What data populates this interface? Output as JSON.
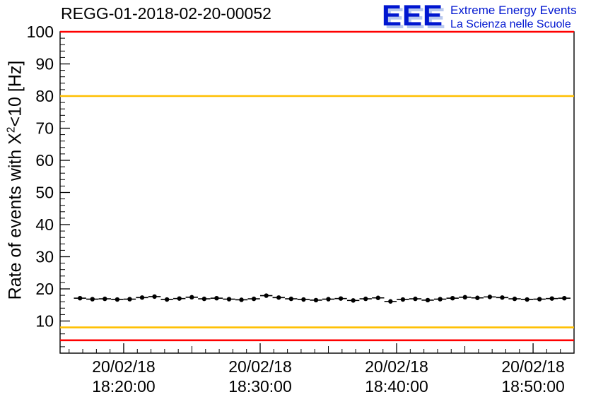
{
  "logo": {
    "text": "EEE",
    "line1": "Extreme Energy Events",
    "line2": "La Scienza nelle Scuole",
    "color": "#0016d0",
    "shadow_color": "#b9c9ee"
  },
  "chart_data": {
    "type": "scatter",
    "title": "REGG-01-2018-02-20-00052",
    "ylabel_parts": {
      "prefix": "Rate of events with X",
      "exp": "2",
      "suffix": "<10 [Hz]"
    },
    "ylim": [
      0,
      100
    ],
    "xlim": [
      15.34,
      53.0
    ],
    "yticks": [
      10,
      20,
      30,
      40,
      50,
      60,
      70,
      80,
      90,
      100
    ],
    "x_ticks": [
      {
        "t": 20,
        "date": "20/02/18",
        "time": "18:20:00"
      },
      {
        "t": 30,
        "date": "20/02/18",
        "time": "18:30:00"
      },
      {
        "t": 40,
        "date": "20/02/18",
        "time": "18:40:00"
      },
      {
        "t": 50,
        "date": "20/02/18",
        "time": "18:50:00"
      }
    ],
    "marker_color": "#000000",
    "y_err": 0.55,
    "x_err": 0.45,
    "x": [
      16.8,
      17.71,
      18.62,
      19.53,
      20.44,
      21.35,
      22.26,
      23.17,
      24.08,
      24.99,
      25.9,
      26.81,
      27.72,
      28.63,
      29.54,
      30.45,
      31.36,
      32.27,
      33.18,
      34.09,
      35.0,
      35.91,
      36.82,
      37.73,
      38.64,
      39.55,
      40.46,
      41.37,
      42.28,
      43.19,
      44.1,
      45.01,
      45.92,
      46.83,
      47.74,
      48.65,
      49.56,
      50.47,
      51.38,
      52.29
    ],
    "y": [
      17.1,
      16.8,
      16.9,
      16.7,
      16.8,
      17.3,
      17.6,
      16.7,
      17.0,
      17.4,
      16.9,
      17.1,
      16.8,
      16.6,
      16.9,
      17.9,
      17.3,
      16.9,
      16.7,
      16.5,
      16.8,
      17.0,
      16.4,
      16.9,
      17.2,
      16.1,
      16.7,
      16.9,
      16.5,
      16.8,
      17.1,
      17.4,
      17.2,
      17.5,
      17.3,
      16.9,
      16.7,
      16.8,
      17.0,
      17.1
    ],
    "reference_lines": [
      {
        "y": 100,
        "color": "#ff0000"
      },
      {
        "y": 80,
        "color": "#ffbf00"
      },
      {
        "y": 8,
        "color": "#ffbf00"
      },
      {
        "y": 4,
        "color": "#ff0000"
      }
    ],
    "grid": false,
    "legend": "none"
  }
}
